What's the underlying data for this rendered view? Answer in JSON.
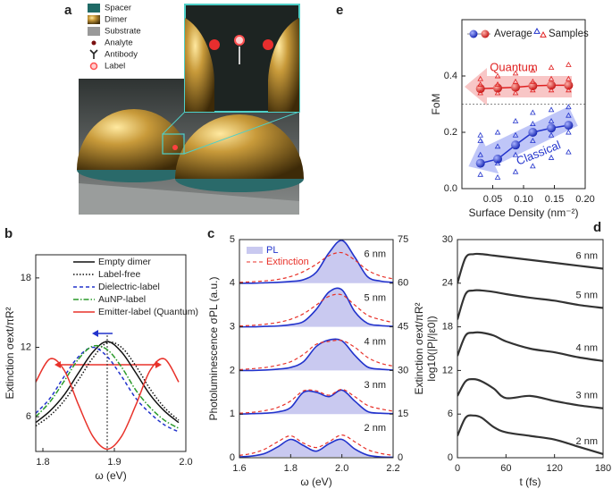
{
  "panel_a": {
    "panel": "a",
    "legend": [
      "Spacer",
      "Dimer",
      "Substrate",
      "Analyte",
      "Antibody",
      "Label"
    ]
  },
  "chart_data": [
    {
      "panel": "b",
      "type": "line",
      "xlabel": "ω (eV)",
      "ylabel": "Extinction σext/πR²",
      "x": [
        1.79,
        1.81,
        1.83,
        1.85,
        1.87,
        1.89,
        1.91,
        1.93,
        1.95,
        1.97,
        1.99
      ],
      "xlim": [
        1.79,
        2.0
      ],
      "xticks": [
        1.8,
        1.9,
        {
          "value": 2,
          "label": "2.0"
        }
      ],
      "ylim": [
        3,
        20
      ],
      "yticks": [
        6,
        12,
        18
      ],
      "vline": 1.89,
      "legend": "upper right",
      "series": [
        {
          "name": "Empty dimer",
          "color": "#111111",
          "style": "solid",
          "values": [
            5.5,
            6.5,
            7.9,
            9.8,
            11.6,
            12.5,
            11.6,
            9.8,
            7.9,
            6.5,
            5.5
          ]
        },
        {
          "name": "Label-free",
          "color": "#111111",
          "style": "dotted",
          "values": [
            5.2,
            6.1,
            7.4,
            9.2,
            11.1,
            12.4,
            12.0,
            10.4,
            8.4,
            6.8,
            5.7
          ]
        },
        {
          "name": "Dielectric-label",
          "color": "#2233cc",
          "style": "dashed",
          "values": [
            6.3,
            7.6,
            9.5,
            11.2,
            12.0,
            11.2,
            9.5,
            7.6,
            6.3,
            5.3,
            4.7
          ]
        },
        {
          "name": "AuNP-label",
          "color": "#2a9a2a",
          "style": "dashdot",
          "values": [
            6.0,
            7.3,
            9.1,
            11.0,
            12.1,
            11.8,
            10.3,
            8.3,
            6.8,
            5.7,
            5.0
          ]
        },
        {
          "name": "Emitter-label (Quantum)",
          "color": "#e8322a",
          "style": "solid",
          "values": [
            9.0,
            11.0,
            10.0,
            7.0,
            4.3,
            3.2,
            4.3,
            7.0,
            10.0,
            11.0,
            9.0
          ]
        }
      ]
    },
    {
      "panel": "c",
      "type": "offset",
      "xlabel": "ω (eV)",
      "ylabel": "Photoluminescence σPL (a.u.)",
      "y2label": "Extinction σext/πR²",
      "x": [
        1.6,
        1.65,
        1.7,
        1.75,
        1.8,
        1.85,
        1.9,
        1.95,
        2.0,
        2.05,
        2.1,
        2.15,
        2.2
      ],
      "xlim": [
        1.6,
        2.2
      ],
      "xticks": [
        1.6,
        1.8,
        {
          "value": 2,
          "label": "2.0"
        },
        2.2
      ],
      "ylim": [
        0,
        5
      ],
      "yticks": [
        0,
        1,
        2,
        3,
        4,
        5
      ],
      "y2lim": [
        0,
        75
      ],
      "y2ticks": [
        0,
        15,
        30,
        45,
        60,
        75
      ],
      "legend": "upper left",
      "pl_name": "PL",
      "pl_color": "#2233cc",
      "ext_name": "Extinction",
      "ext_color": "#e8322a",
      "groups": [
        {
          "label": "2 nm",
          "pl": [
            0.02,
            0.04,
            0.1,
            0.25,
            0.42,
            0.28,
            0.15,
            0.32,
            0.42,
            0.2,
            0.06,
            0.02,
            0.01
          ],
          "ext": [
            0.8,
            1.5,
            3,
            5.5,
            7.5,
            5,
            3.5,
            5.5,
            7.8,
            5.5,
            2.8,
            1.5,
            0.8
          ]
        },
        {
          "label": "3 nm",
          "pl": [
            1.0,
            1.01,
            1.02,
            1.05,
            1.15,
            1.5,
            1.5,
            1.4,
            1.55,
            1.3,
            1.06,
            1.02,
            1.01
          ],
          "ext": [
            15.3,
            15.6,
            16.2,
            17.3,
            19.5,
            23,
            23,
            21.5,
            23.5,
            21,
            18,
            16.8,
            16
          ]
        },
        {
          "label": "4 nm",
          "pl": [
            2.0,
            2.0,
            2.01,
            2.03,
            2.07,
            2.2,
            2.55,
            2.7,
            2.68,
            2.35,
            2.08,
            2.03,
            2.01
          ],
          "ext": [
            30.3,
            30.6,
            31,
            31.8,
            33,
            35.5,
            39,
            40,
            40.3,
            38,
            34.5,
            32.5,
            31.5
          ]
        },
        {
          "label": "5 nm",
          "pl": [
            3.0,
            3.0,
            3.01,
            3.02,
            3.05,
            3.12,
            3.4,
            3.8,
            3.85,
            3.35,
            3.08,
            3.03,
            3.01
          ],
          "ext": [
            45.3,
            45.5,
            45.9,
            46.5,
            47.6,
            49.5,
            52.5,
            55.5,
            56,
            52.5,
            49,
            47.5,
            46.5
          ]
        },
        {
          "label": "6 nm",
          "pl": [
            4.0,
            4.0,
            4.01,
            4.02,
            4.04,
            4.08,
            4.25,
            4.7,
            4.98,
            4.6,
            4.15,
            4.05,
            4.02
          ],
          "ext": [
            60.3,
            60.5,
            60.8,
            61.3,
            62.3,
            64,
            66.5,
            69.5,
            70.5,
            68,
            64.5,
            62.5,
            61.5
          ]
        }
      ]
    },
    {
      "panel": "d",
      "type": "line",
      "xlabel": "t (fs)",
      "ylabel": "log10(|P|/|ε0|)",
      "x": [
        0,
        10,
        20,
        30,
        45,
        60,
        90,
        120,
        150,
        180
      ],
      "xlim": [
        0,
        180
      ],
      "xticks": [
        0,
        60,
        120,
        180
      ],
      "ylim": [
        0,
        30
      ],
      "yticks": [
        0,
        6,
        12,
        18,
        24,
        30
      ],
      "legend": "line end",
      "series": [
        {
          "name": "6 nm",
          "color": "#333333",
          "style": "solid",
          "values": [
            24,
            27.5,
            28,
            28,
            27.8,
            27.6,
            27.2,
            26.8,
            26.4,
            26
          ]
        },
        {
          "name": "5 nm",
          "color": "#333333",
          "style": "solid",
          "values": [
            19,
            22.5,
            23,
            23,
            22.8,
            22.5,
            22,
            21.6,
            21,
            20.6
          ]
        },
        {
          "name": "4 nm",
          "color": "#333333",
          "style": "solid",
          "values": [
            14,
            16.8,
            17.2,
            17.2,
            16.8,
            16,
            15,
            14.5,
            13.8,
            13.3
          ]
        },
        {
          "name": "3 nm",
          "color": "#333333",
          "style": "solid",
          "values": [
            8.5,
            10.5,
            10.8,
            10.5,
            9.5,
            8.2,
            8.5,
            7.8,
            7.2,
            6.8
          ]
        },
        {
          "name": "2 nm",
          "color": "#333333",
          "style": "solid",
          "values": [
            3,
            5.5,
            5.8,
            5.5,
            4.2,
            3.5,
            3,
            2.5,
            1.5,
            0.5
          ]
        }
      ]
    },
    {
      "panel": "e",
      "type": "scatter",
      "xlabel": "Surface Density (nm⁻²)",
      "ylabel": "FoM",
      "xlim": [
        0,
        0.2
      ],
      "xticks": [
        0.05,
        {
          "value": 0.1,
          "label": "0.10"
        },
        0.15,
        {
          "value": 0.2,
          "label": "0.20"
        }
      ],
      "ylim": [
        0,
        0.6
      ],
      "yticks": [
        {
          "value": 0,
          "label": "0.0"
        },
        0.2,
        0.4
      ],
      "hline": 0.3,
      "legend": [
        "Average",
        "Samples"
      ],
      "annotations": [
        "Quantum",
        "Classical"
      ],
      "series": [
        {
          "color": "#2233cc",
          "marker": "ball",
          "x": [
            0.03,
            0.058,
            0.087,
            0.115,
            0.145,
            0.173
          ],
          "values": [
            0.09,
            0.105,
            0.155,
            0.2,
            0.215,
            0.225
          ]
        },
        {
          "color": "#e02020",
          "marker": "ball",
          "x": [
            0.03,
            0.058,
            0.087,
            0.115,
            0.145,
            0.173
          ],
          "values": [
            0.355,
            0.357,
            0.36,
            0.365,
            0.367,
            0.367
          ]
        },
        {
          "color": "#2233cc",
          "marker": "triangle",
          "x": [
            0.03,
            0.03,
            0.03,
            0.03,
            0.058,
            0.058,
            0.058,
            0.058,
            0.087,
            0.087,
            0.087,
            0.087,
            0.115,
            0.115,
            0.115,
            0.115,
            0.145,
            0.145,
            0.145,
            0.145,
            0.173,
            0.173,
            0.173,
            0.173
          ],
          "values": [
            0.05,
            0.12,
            0.17,
            0.19,
            0.04,
            0.09,
            0.15,
            0.2,
            0.06,
            0.12,
            0.19,
            0.24,
            0.08,
            0.17,
            0.23,
            0.27,
            0.11,
            0.19,
            0.24,
            0.28,
            0.13,
            0.2,
            0.26,
            0.29
          ]
        },
        {
          "color": "#e02020",
          "marker": "triangle",
          "x": [
            0.03,
            0.03,
            0.03,
            0.058,
            0.058,
            0.058,
            0.087,
            0.087,
            0.087,
            0.115,
            0.115,
            0.115,
            0.145,
            0.145,
            0.145,
            0.173,
            0.173,
            0.173
          ],
          "values": [
            0.34,
            0.37,
            0.39,
            0.34,
            0.37,
            0.4,
            0.34,
            0.38,
            0.41,
            0.35,
            0.38,
            0.42,
            0.35,
            0.39,
            0.43,
            0.35,
            0.39,
            0.44
          ]
        }
      ]
    }
  ]
}
